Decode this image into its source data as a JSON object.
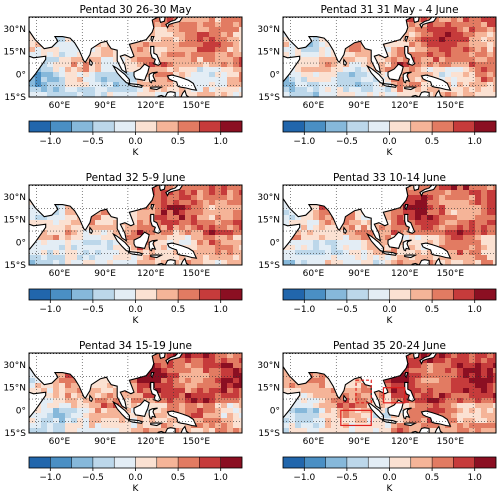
{
  "colorbar": {
    "label": "K",
    "ticks": [
      "−1.0",
      "−0.5",
      "0.0",
      "0.5",
      "1.0"
    ],
    "tick_values": [
      -1.0,
      -0.5,
      0.0,
      0.5,
      1.0
    ],
    "range": [
      -1.25,
      1.25
    ],
    "bin_width": 0.25,
    "colors": [
      "#2166ac",
      "#4a8fc4",
      "#86b8da",
      "#bcd7ea",
      "#e3edf5",
      "#fbe1d2",
      "#f5b498",
      "#e27b62",
      "#c63b3b",
      "#8b0f22"
    ]
  },
  "axis": {
    "lon_ticks": [
      60,
      90,
      120,
      150
    ],
    "lon_labels": [
      "60°E",
      "90°E",
      "120°E",
      "150°E"
    ],
    "lat_ticks": [
      30,
      15,
      0,
      -15
    ],
    "lat_labels": [
      "30°N",
      "15°N",
      "0°",
      "15°S"
    ],
    "lon_range": [
      40,
      180
    ],
    "lat_range": [
      -15,
      38
    ]
  },
  "chart_data": [
    {
      "type": "heatmap",
      "title": "Pentad 30 26-30 May",
      "anomaly_level": 0.15
    },
    {
      "type": "heatmap",
      "title": "Pentad 31 31 May - 4 June",
      "anomaly_level": 0.25
    },
    {
      "type": "heatmap",
      "title": "Pentad 32 5-9 June",
      "anomaly_level": 0.3
    },
    {
      "type": "heatmap",
      "title": "Pentad 33 10-14 June",
      "anomaly_level": 0.35
    },
    {
      "type": "heatmap",
      "title": "Pentad 34 15-19 June",
      "anomaly_level": 0.4
    },
    {
      "type": "heatmap",
      "title": "Pentad 35 20-24 June",
      "anomaly_level": 0.45,
      "boxes": [
        {
          "style": "dashed",
          "lon": [
            88,
            98
          ],
          "lat": [
            5,
            20
          ]
        },
        {
          "style": "solid",
          "lon": [
            78,
            98
          ],
          "lat": [
            -10,
            0
          ]
        },
        {
          "style": "solid",
          "lon": [
            106,
            120
          ],
          "lat": [
            5,
            15
          ]
        }
      ]
    }
  ]
}
